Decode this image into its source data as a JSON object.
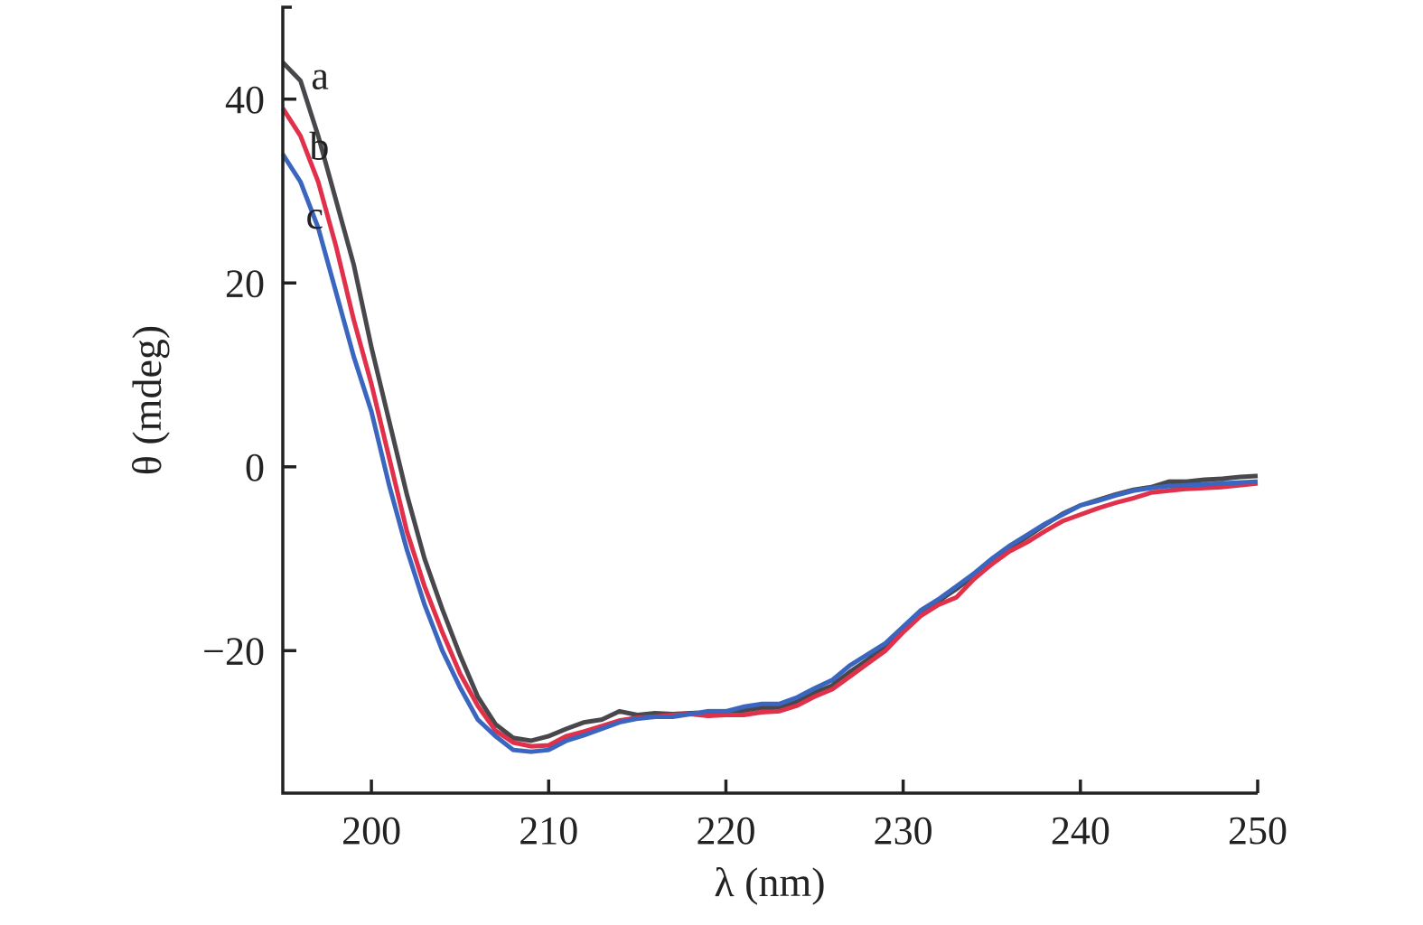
{
  "chart_data": {
    "type": "line",
    "title": "",
    "xlabel": "λ (nm)",
    "ylabel": "θ (mdeg)",
    "xlim": [
      195,
      250
    ],
    "ylim": [
      -35.5,
      50
    ],
    "xticks": [
      200,
      210,
      220,
      230,
      240,
      250
    ],
    "yticks": [
      -20,
      0,
      20,
      40
    ],
    "ytick_labels": [
      "−20",
      "0",
      "20",
      "40"
    ],
    "grid": false,
    "legend": "none (curves labeled inline at top-left)",
    "x": [
      195,
      196,
      197,
      198,
      199,
      200,
      201,
      202,
      203,
      204,
      205,
      206,
      207,
      208,
      209,
      210,
      211,
      212,
      213,
      214,
      215,
      216,
      217,
      218,
      219,
      220,
      221,
      222,
      223,
      224,
      225,
      226,
      227,
      228,
      229,
      230,
      231,
      232,
      233,
      234,
      235,
      236,
      237,
      238,
      239,
      240,
      241,
      242,
      243,
      244,
      245,
      246,
      247,
      248,
      249,
      250
    ],
    "series": [
      {
        "name": "a",
        "color": "#48484c",
        "label_at": [
          196.6,
          42.5
        ],
        "values": [
          44,
          42,
          36,
          29,
          22,
          13,
          5,
          -3,
          -10,
          -15.5,
          -20.5,
          -25,
          -28,
          -29.5,
          -29.8,
          -29.3,
          -28.5,
          -27.8,
          -27.5,
          -26.6,
          -27,
          -26.8,
          -26.9,
          -26.8,
          -26.7,
          -26.8,
          -26.5,
          -26.2,
          -26.2,
          -25.5,
          -24.6,
          -23.8,
          -22.3,
          -21,
          -19.5,
          -17.5,
          -15.8,
          -14.6,
          -13.3,
          -11.8,
          -10.2,
          -8.8,
          -7.6,
          -6.3,
          -5.1,
          -4.2,
          -3.6,
          -3,
          -2.5,
          -2.2,
          -1.6,
          -1.6,
          -1.4,
          -1.3,
          -1.1,
          -1.0
        ]
      },
      {
        "name": "b",
        "color": "#e0304a",
        "label_at": [
          196.5,
          34.8
        ],
        "values": [
          39,
          36,
          31,
          24,
          16,
          9,
          1,
          -7,
          -13,
          -18,
          -22.5,
          -26,
          -28.7,
          -30,
          -30.4,
          -30.3,
          -29.3,
          -28.8,
          -28.2,
          -27.6,
          -27.3,
          -27.2,
          -27,
          -26.9,
          -27.1,
          -27,
          -27,
          -26.7,
          -26.6,
          -26,
          -25,
          -24.2,
          -22.8,
          -21.4,
          -20,
          -18,
          -16.2,
          -15,
          -14.2,
          -12.2,
          -10.6,
          -9.2,
          -8.2,
          -7,
          -5.9,
          -5.2,
          -4.5,
          -3.9,
          -3.4,
          -2.8,
          -2.6,
          -2.4,
          -2.3,
          -2.2,
          -2.0,
          -1.8
        ]
      },
      {
        "name": "c",
        "color": "#3a66c0",
        "label_at": [
          196.3,
          27.3
        ],
        "values": [
          34,
          31,
          26,
          19,
          12,
          6,
          -2,
          -9,
          -15,
          -20,
          -24,
          -27.5,
          -29.3,
          -30.8,
          -31,
          -30.8,
          -29.8,
          -29.2,
          -28.5,
          -27.8,
          -27.4,
          -27.2,
          -27.2,
          -26.9,
          -26.6,
          -26.6,
          -26.1,
          -25.8,
          -25.8,
          -25.1,
          -24.1,
          -23.2,
          -21.6,
          -20.4,
          -19.2,
          -17.4,
          -15.6,
          -14.4,
          -13,
          -11.6,
          -10,
          -8.6,
          -7.4,
          -6.2,
          -5.2,
          -4.2,
          -3.7,
          -3.1,
          -2.6,
          -2.3,
          -2.1,
          -2.0,
          -1.9,
          -1.8,
          -1.7,
          -1.6
        ]
      }
    ]
  }
}
